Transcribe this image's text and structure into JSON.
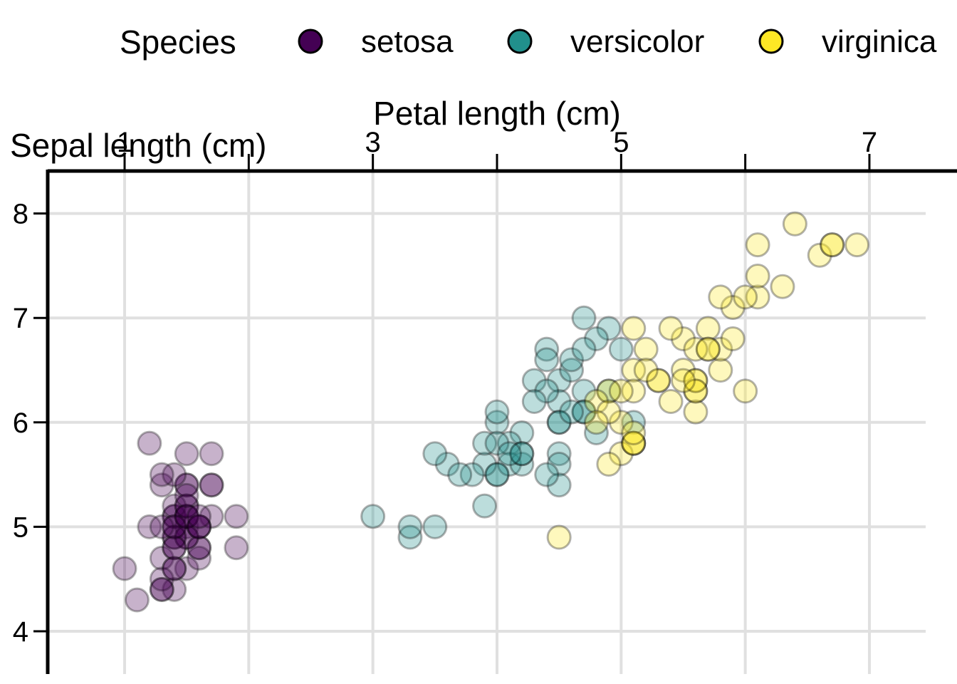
{
  "chart_data": {
    "type": "scatter",
    "title": "",
    "xlabel": "Petal length (cm)",
    "ylabel": "Sepal length (cm)",
    "xlim": [
      0.7,
      7.6
    ],
    "ylim": [
      3.65,
      8.4
    ],
    "xticks": [
      1,
      3,
      5,
      7
    ],
    "xticks_minor_grid": [
      2,
      4,
      6
    ],
    "yticks": [
      4,
      5,
      6,
      7,
      8
    ],
    "x_axis_position": "top",
    "grid": true,
    "legend": {
      "title": "Species",
      "position": "top"
    },
    "series": [
      {
        "name": "setosa",
        "color": "#440154",
        "points": [
          [
            1.4,
            5.1
          ],
          [
            1.4,
            4.9
          ],
          [
            1.3,
            4.7
          ],
          [
            1.5,
            4.6
          ],
          [
            1.4,
            5.0
          ],
          [
            1.7,
            5.4
          ],
          [
            1.4,
            4.6
          ],
          [
            1.5,
            5.0
          ],
          [
            1.4,
            4.4
          ],
          [
            1.5,
            4.9
          ],
          [
            1.5,
            5.4
          ],
          [
            1.6,
            4.8
          ],
          [
            1.4,
            4.8
          ],
          [
            1.1,
            4.3
          ],
          [
            1.2,
            5.8
          ],
          [
            1.5,
            5.7
          ],
          [
            1.3,
            5.4
          ],
          [
            1.4,
            5.1
          ],
          [
            1.7,
            5.7
          ],
          [
            1.5,
            5.1
          ],
          [
            1.7,
            5.4
          ],
          [
            1.5,
            5.1
          ],
          [
            1.0,
            4.6
          ],
          [
            1.7,
            5.1
          ],
          [
            1.9,
            4.8
          ],
          [
            1.6,
            5.0
          ],
          [
            1.6,
            5.0
          ],
          [
            1.5,
            5.2
          ],
          [
            1.4,
            5.2
          ],
          [
            1.6,
            4.7
          ],
          [
            1.6,
            4.8
          ],
          [
            1.5,
            5.4
          ],
          [
            1.5,
            5.2
          ],
          [
            1.4,
            5.5
          ],
          [
            1.5,
            4.9
          ],
          [
            1.2,
            5.0
          ],
          [
            1.3,
            5.5
          ],
          [
            1.4,
            4.9
          ],
          [
            1.3,
            4.4
          ],
          [
            1.5,
            5.1
          ],
          [
            1.3,
            5.0
          ],
          [
            1.3,
            4.5
          ],
          [
            1.3,
            4.4
          ],
          [
            1.6,
            5.0
          ],
          [
            1.9,
            5.1
          ],
          [
            1.4,
            4.8
          ],
          [
            1.6,
            5.1
          ],
          [
            1.4,
            4.6
          ],
          [
            1.5,
            5.3
          ],
          [
            1.4,
            5.0
          ]
        ]
      },
      {
        "name": "versicolor",
        "color": "#21908C",
        "points": [
          [
            4.7,
            7.0
          ],
          [
            4.5,
            6.4
          ],
          [
            4.9,
            6.9
          ],
          [
            4.0,
            5.5
          ],
          [
            4.6,
            6.5
          ],
          [
            4.5,
            5.7
          ],
          [
            4.7,
            6.3
          ],
          [
            3.3,
            4.9
          ],
          [
            4.6,
            6.6
          ],
          [
            3.9,
            5.2
          ],
          [
            3.5,
            5.0
          ],
          [
            4.2,
            5.9
          ],
          [
            4.0,
            6.0
          ],
          [
            4.7,
            6.1
          ],
          [
            3.6,
            5.6
          ],
          [
            4.4,
            6.7
          ],
          [
            4.5,
            5.6
          ],
          [
            4.1,
            5.8
          ],
          [
            4.5,
            6.2
          ],
          [
            3.9,
            5.6
          ],
          [
            4.8,
            5.9
          ],
          [
            4.0,
            6.1
          ],
          [
            4.9,
            6.3
          ],
          [
            4.7,
            6.1
          ],
          [
            4.3,
            6.4
          ],
          [
            4.4,
            6.6
          ],
          [
            4.8,
            6.8
          ],
          [
            5.0,
            6.7
          ],
          [
            4.5,
            6.0
          ],
          [
            3.5,
            5.7
          ],
          [
            3.8,
            5.5
          ],
          [
            3.7,
            5.5
          ],
          [
            3.9,
            5.8
          ],
          [
            5.1,
            6.0
          ],
          [
            4.5,
            5.4
          ],
          [
            4.5,
            6.0
          ],
          [
            4.7,
            6.7
          ],
          [
            4.4,
            6.3
          ],
          [
            4.1,
            5.6
          ],
          [
            4.0,
            5.5
          ],
          [
            4.4,
            5.5
          ],
          [
            4.6,
            6.1
          ],
          [
            4.0,
            5.8
          ],
          [
            3.3,
            5.0
          ],
          [
            4.2,
            5.6
          ],
          [
            4.2,
            5.7
          ],
          [
            4.2,
            5.7
          ],
          [
            4.3,
            6.2
          ],
          [
            3.0,
            5.1
          ],
          [
            4.1,
            5.7
          ]
        ]
      },
      {
        "name": "virginica",
        "color": "#FDE725",
        "points": [
          [
            6.0,
            6.3
          ],
          [
            5.1,
            5.8
          ],
          [
            5.9,
            7.1
          ],
          [
            5.6,
            6.3
          ],
          [
            5.8,
            6.5
          ],
          [
            6.6,
            7.6
          ],
          [
            4.5,
            4.9
          ],
          [
            6.3,
            7.3
          ],
          [
            5.8,
            6.7
          ],
          [
            6.1,
            7.2
          ],
          [
            5.1,
            6.5
          ],
          [
            5.3,
            6.4
          ],
          [
            5.5,
            6.8
          ],
          [
            5.0,
            5.7
          ],
          [
            5.1,
            5.8
          ],
          [
            5.3,
            6.4
          ],
          [
            5.5,
            6.5
          ],
          [
            6.7,
            7.7
          ],
          [
            6.9,
            7.7
          ],
          [
            5.0,
            6.0
          ],
          [
            5.7,
            6.9
          ],
          [
            4.9,
            5.6
          ],
          [
            6.7,
            7.7
          ],
          [
            4.9,
            6.3
          ],
          [
            5.7,
            6.7
          ],
          [
            6.0,
            7.2
          ],
          [
            4.8,
            6.2
          ],
          [
            4.9,
            6.1
          ],
          [
            5.6,
            6.4
          ],
          [
            5.8,
            7.2
          ],
          [
            6.1,
            7.4
          ],
          [
            6.4,
            7.9
          ],
          [
            5.6,
            6.4
          ],
          [
            5.1,
            6.3
          ],
          [
            5.6,
            6.1
          ],
          [
            6.1,
            7.7
          ],
          [
            5.6,
            6.3
          ],
          [
            5.5,
            6.4
          ],
          [
            4.8,
            6.0
          ],
          [
            5.4,
            6.9
          ],
          [
            5.6,
            6.7
          ],
          [
            5.1,
            6.9
          ],
          [
            5.1,
            5.8
          ],
          [
            5.9,
            6.8
          ],
          [
            5.7,
            6.7
          ],
          [
            5.2,
            6.7
          ],
          [
            5.0,
            6.3
          ],
          [
            5.2,
            6.5
          ],
          [
            5.4,
            6.2
          ],
          [
            5.1,
            5.9
          ]
        ]
      }
    ]
  }
}
